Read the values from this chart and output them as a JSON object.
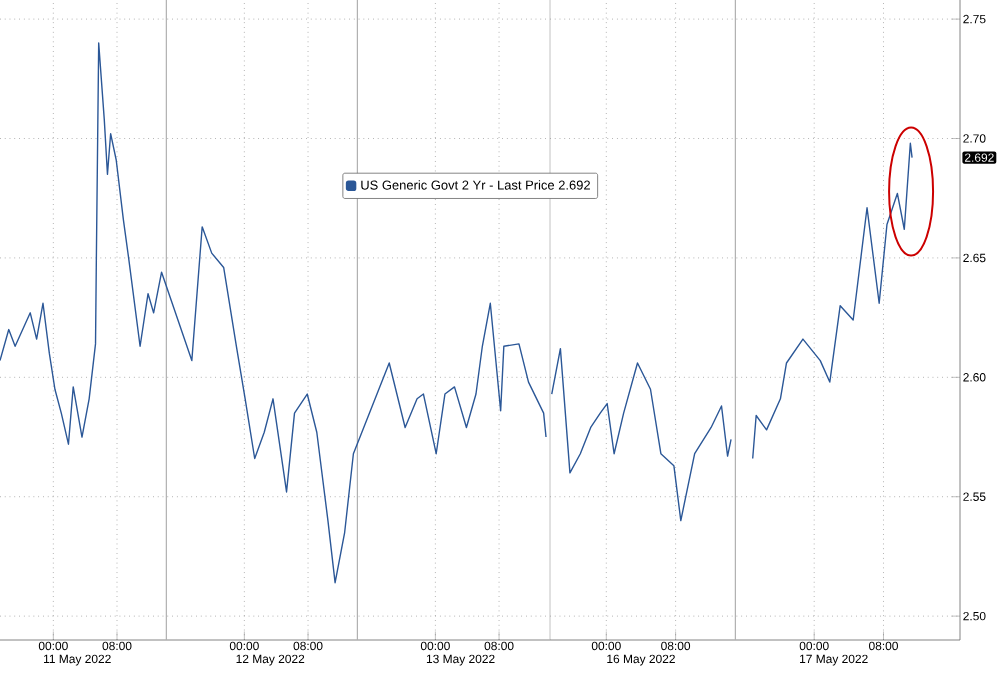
{
  "chart_data": [
    {
      "type": "line",
      "x": [
        "2022-05-10T17:18",
        "2022-05-10T18:24",
        "2022-05-10T19:12",
        "2022-05-10T21:06",
        "2022-05-10T21:54",
        "2022-05-10T22:42",
        "2022-05-10T23:30",
        "2022-05-11T00:12",
        "2022-05-11T01:00",
        "2022-05-11T01:54",
        "2022-05-11T02:30",
        "2022-05-11T03:36",
        "2022-05-11T04:30",
        "2022-05-11T05:18",
        "2022-05-11T05:24",
        "2022-05-11T05:42",
        "2022-05-11T06:24",
        "2022-05-11T06:48",
        "2022-05-11T07:12",
        "2022-05-11T07:54",
        "2022-05-11T08:48",
        "2022-05-11T09:30",
        "2022-05-11T10:54",
        "2022-05-11T11:54",
        "2022-05-11T12:36",
        "2022-05-11T13:36",
        "2022-05-11T17:24",
        "2022-05-11T18:42",
        "2022-05-11T19:54",
        "2022-05-11T21:24",
        "2022-05-11T23:00",
        "2022-05-12T00:06",
        "2022-05-12T01:18",
        "2022-05-12T02:30",
        "2022-05-12T03:36",
        "2022-05-12T05:18",
        "2022-05-12T06:18",
        "2022-05-12T07:54",
        "2022-05-12T09:06",
        "2022-05-12T10:30",
        "2022-05-12T11:24",
        "2022-05-12T12:36",
        "2022-05-12T13:42",
        "2022-05-12T18:12",
        "2022-05-12T20:12",
        "2022-05-12T21:42",
        "2022-05-12T22:30",
        "2022-05-13T00:06",
        "2022-05-13T01:12",
        "2022-05-13T02:24",
        "2022-05-13T03:54",
        "2022-05-13T05:06",
        "2022-05-13T05:54",
        "2022-05-13T06:54",
        "2022-05-13T08:12",
        "2022-05-13T08:36",
        "2022-05-13T10:30",
        "2022-05-13T11:42",
        "2022-05-13T13:36",
        "2022-05-13T13:54"
      ],
      "series": [
        {
          "name": "US Generic Govt 2 Yr - Last Price 2.692",
          "color": "#2b5797",
          "values": [
            2.607,
            2.62,
            2.613,
            2.627,
            2.616,
            2.631,
            2.61,
            2.595,
            2.585,
            2.572,
            2.596,
            2.575,
            2.591,
            2.614,
            2.648,
            2.74,
            2.708,
            2.685,
            2.702,
            2.691,
            2.666,
            2.649,
            2.613,
            2.635,
            2.627,
            2.644,
            2.607,
            2.663,
            2.652,
            2.646,
            2.613,
            2.591,
            2.566,
            2.577,
            2.591,
            2.552,
            2.585,
            2.593,
            2.577,
            2.54,
            2.514,
            2.535,
            2.568,
            2.606,
            2.579,
            2.591,
            2.593,
            2.568,
            2.593,
            2.596,
            2.579,
            2.593,
            2.613,
            2.631,
            2.586,
            2.613,
            2.614,
            2.598,
            2.585,
            2.575
          ]
        }
      ],
      "xlim": [
        "2022-05-10T17:18",
        "2022-05-13T14:24"
      ],
      "xticks": [
        {
          "value": "2022-05-11T00:00",
          "label": "00:00"
        },
        {
          "value": "2022-05-11T08:00",
          "label": "08:00"
        },
        {
          "value": "2022-05-12T00:00",
          "label": "00:00"
        },
        {
          "value": "2022-05-12T08:00",
          "label": "08:00"
        },
        {
          "value": "2022-05-13T00:00",
          "label": "00:00"
        },
        {
          "value": "2022-05-13T08:00",
          "label": "08:00"
        }
      ],
      "x2lim": [
        "2022-05-10T17:18",
        "2022-05-13T14:24"
      ],
      "x2ticks": [
        {
          "value": "2022-05-11T03:00",
          "label": "11 May 2022"
        },
        {
          "value": "2022-05-12T03:15",
          "label": "12 May 2022"
        },
        {
          "value": "2022-05-13T03:10",
          "label": "13 May 2022"
        }
      ],
      "ylim": [
        2.49,
        2.758
      ],
      "yticks": [
        {
          "value": 2.5,
          "label": null
        },
        {
          "value": 2.55,
          "label": null
        },
        {
          "value": 2.6,
          "label": null
        },
        {
          "value": 2.65,
          "label": null
        },
        {
          "value": 2.7,
          "label": null
        },
        {
          "value": 2.75,
          "label": null
        }
      ],
      "ref_lines": [
        {
          "axis": "x",
          "value": "2022-05-11T14:12",
          "color": "#b0b0b0"
        },
        {
          "axis": "x",
          "value": "2022-05-12T14:12",
          "color": "#b0b0b0"
        }
      ],
      "tick_labels": "x",
      "grid": true,
      "legend": "top",
      "marker": "none",
      "line_style": "solid"
    },
    {
      "type": "line",
      "x": [
        "2022-05-15T17:42",
        "2022-05-15T18:42",
        "2022-05-15T19:48",
        "2022-05-15T21:00",
        "2022-05-15T22:12",
        "2022-05-15T23:18",
        "2022-05-16T00:06",
        "2022-05-16T00:54",
        "2022-05-16T02:00",
        "2022-05-16T03:36",
        "2022-05-16T05:06",
        "2022-05-16T06:18",
        "2022-05-16T07:48",
        "2022-05-16T08:36",
        "2022-05-16T10:12",
        "2022-05-16T12:06",
        "2022-05-16T13:18",
        "2022-05-16T14:00",
        "2022-05-16T14:24",
        "2022-05-16T15:00",
        "2022-05-16T16:54",
        "2022-05-16T17:18",
        "2022-05-16T18:30",
        "2022-05-16T20:06",
        "2022-05-16T20:48",
        "2022-05-16T22:42",
        "2022-05-17T00:42",
        "2022-05-17T01:48",
        "2022-05-17T03:00",
        "2022-05-17T04:30",
        "2022-05-17T06:06",
        "2022-05-17T07:30",
        "2022-05-17T08:24",
        "2022-05-17T09:36",
        "2022-05-17T10:24",
        "2022-05-17T11:06",
        "2022-05-17T11:18"
      ],
      "series": [
        {
          "color": "#2b5797",
          "values": [
            2.593,
            2.612,
            2.56,
            2.568,
            2.579,
            2.585,
            2.589,
            2.568,
            2.585,
            2.606,
            2.595,
            2.568,
            2.563,
            2.54,
            2.568,
            2.579,
            2.588,
            2.567,
            2.574,
            null,
            2.566,
            2.584,
            2.578,
            2.591,
            2.606,
            2.616,
            2.607,
            2.598,
            2.63,
            2.624,
            2.671,
            2.631,
            2.664,
            2.677,
            2.662,
            2.698,
            2.692
          ]
        }
      ],
      "xlim": [
        "2022-05-15T17:30",
        "2022-05-17T16:50"
      ],
      "xticks": [
        {
          "value": "2022-05-16T00:00",
          "label": "00:00"
        },
        {
          "value": "2022-05-16T08:00",
          "label": "08:00"
        },
        {
          "value": "2022-05-17T00:00",
          "label": "00:00"
        },
        {
          "value": "2022-05-17T08:00",
          "label": "08:00"
        }
      ],
      "x2lim": [
        "2022-05-15T17:30",
        "2022-05-17T16:50"
      ],
      "x2ticks": [
        {
          "value": "2022-05-16T04:00",
          "label": "16 May 2022"
        },
        {
          "value": "2022-05-17T02:15",
          "label": "17 May 2022"
        }
      ],
      "ylim": [
        2.49,
        2.758
      ],
      "yticks": [
        {
          "value": 2.5,
          "label": "2.50"
        },
        {
          "value": 2.55,
          "label": "2.55"
        },
        {
          "value": 2.6,
          "label": "2.60"
        },
        {
          "value": 2.65,
          "label": "2.65"
        },
        {
          "value": 2.7,
          "label": "2.70"
        },
        {
          "value": 2.75,
          "label": "2.75"
        }
      ],
      "ref_lines": [
        {
          "axis": "x",
          "value": "2022-05-16T14:54",
          "color": "#b0b0b0"
        }
      ],
      "annotations": [
        "2.692"
      ],
      "grid": true,
      "marker": "none",
      "line_style": "solid"
    }
  ]
}
